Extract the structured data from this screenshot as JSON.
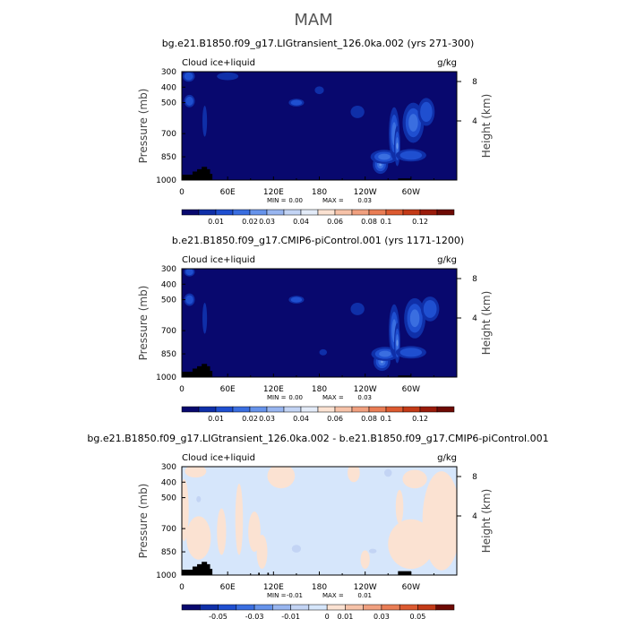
{
  "main_title": "MAM",
  "chart_data": [
    {
      "type": "heatmap",
      "title": "bg.e21.B1850.f09_g17.LIGtransient_126.0ka.002 (yrs 271-300)",
      "left_label": "Cloud ice+liquid",
      "units": "g/kg",
      "ylabel": "Pressure (mb)",
      "y2label": "Height (km)",
      "x_ticks": [
        "0",
        "60E",
        "120E",
        "180",
        "120W",
        "60W"
      ],
      "x_tick_lons": [
        0,
        60,
        120,
        180,
        240,
        300
      ],
      "xlim": [
        0,
        360
      ],
      "y_ticks": [
        "300",
        "400",
        "500",
        "700",
        "850",
        "1000"
      ],
      "y_tick_values": [
        300,
        400,
        500,
        700,
        850,
        1000
      ],
      "ylim": [
        300,
        1000
      ],
      "y2_ticks": [
        "8",
        "4"
      ],
      "y2_tick_values": [
        8,
        4
      ],
      "min_label": "MIN =",
      "min_value": "0.00",
      "max_label": "MAX =",
      "max_value": "0.03",
      "colorbar_labels": [
        "0.01",
        "0.02",
        "0.03",
        "0.04",
        "0.06",
        "0.08",
        "0.1",
        "0.12"
      ],
      "colorbar_colors": [
        "#08086e",
        "#0f2fa8",
        "#1f4fd0",
        "#3a6ee0",
        "#6693ea",
        "#98b5ef",
        "#c3d4f4",
        "#e3ebf8",
        "#fbe2d2",
        "#f6c2a8",
        "#f0a07f",
        "#e97d55",
        "#dc5a30",
        "#c33a17",
        "#9a1b0a",
        "#6e0a04"
      ],
      "background_color": "#08086e",
      "features": [
        {
          "lon": 260,
          "p": 900,
          "rx": 10,
          "rp": 60,
          "level": 4
        },
        {
          "lon": 265,
          "p": 850,
          "rx": 18,
          "rp": 45,
          "level": 3
        },
        {
          "lon": 278,
          "p": 700,
          "rx": 7,
          "rp": 170,
          "level": 3
        },
        {
          "lon": 282,
          "p": 780,
          "rx": 4,
          "rp": 130,
          "level": 4
        },
        {
          "lon": 303,
          "p": 630,
          "rx": 14,
          "rp": 130,
          "level": 3
        },
        {
          "lon": 320,
          "p": 560,
          "rx": 11,
          "rp": 90,
          "level": 2
        },
        {
          "lon": 300,
          "p": 840,
          "rx": 20,
          "rp": 40,
          "level": 2
        },
        {
          "lon": 150,
          "p": 500,
          "rx": 10,
          "rp": 25,
          "level": 2
        },
        {
          "lon": 10,
          "p": 490,
          "rx": 7,
          "rp": 40,
          "level": 2
        },
        {
          "lon": 9,
          "p": 330,
          "rx": 8,
          "rp": 35,
          "level": 2
        },
        {
          "lon": 30,
          "p": 620,
          "rx": 3,
          "rp": 100,
          "level": 1
        },
        {
          "lon": 60,
          "p": 330,
          "rx": 14,
          "rp": 25,
          "level": 1
        },
        {
          "lon": 230,
          "p": 560,
          "rx": 9,
          "rp": 40,
          "level": 1
        },
        {
          "lon": 180,
          "p": 420,
          "rx": 6,
          "rp": 25,
          "level": 1
        }
      ],
      "topography": [
        [
          0,
          1000
        ],
        [
          0,
          965
        ],
        [
          14,
          965
        ],
        [
          14,
          945
        ],
        [
          20,
          945
        ],
        [
          20,
          930
        ],
        [
          26,
          930
        ],
        [
          26,
          915
        ],
        [
          33,
          915
        ],
        [
          33,
          930
        ],
        [
          37,
          930
        ],
        [
          37,
          960
        ],
        [
          40,
          960
        ],
        [
          40,
          1000
        ]
      ],
      "topography_extra": [
        [
          283,
          990,
          300,
          1000
        ]
      ]
    },
    {
      "type": "heatmap",
      "title": "b.e21.B1850.f09_g17.CMIP6-piControl.001 (yrs 1171-1200)",
      "left_label": "Cloud ice+liquid",
      "units": "g/kg",
      "ylabel": "Pressure (mb)",
      "y2label": "Height (km)",
      "x_ticks": [
        "0",
        "60E",
        "120E",
        "180",
        "120W",
        "60W"
      ],
      "x_tick_lons": [
        0,
        60,
        120,
        180,
        240,
        300
      ],
      "xlim": [
        0,
        360
      ],
      "y_ticks": [
        "300",
        "400",
        "500",
        "700",
        "850",
        "1000"
      ],
      "y_tick_values": [
        300,
        400,
        500,
        700,
        850,
        1000
      ],
      "ylim": [
        300,
        1000
      ],
      "y2_ticks": [
        "8",
        "4"
      ],
      "y2_tick_values": [
        8,
        4
      ],
      "min_label": "MIN =",
      "min_value": "0.00",
      "max_label": "MAX =",
      "max_value": "0.03",
      "colorbar_labels": [
        "0.01",
        "0.02",
        "0.03",
        "0.04",
        "0.06",
        "0.08",
        "0.1",
        "0.12"
      ],
      "colorbar_colors": [
        "#08086e",
        "#0f2fa8",
        "#1f4fd0",
        "#3a6ee0",
        "#6693ea",
        "#98b5ef",
        "#c3d4f4",
        "#e3ebf8",
        "#fbe2d2",
        "#f6c2a8",
        "#f0a07f",
        "#e97d55",
        "#dc5a30",
        "#c33a17",
        "#9a1b0a",
        "#6e0a04"
      ],
      "background_color": "#08086e",
      "features": [
        {
          "lon": 262,
          "p": 900,
          "rx": 11,
          "rp": 60,
          "level": 4
        },
        {
          "lon": 266,
          "p": 850,
          "rx": 18,
          "rp": 45,
          "level": 3
        },
        {
          "lon": 278,
          "p": 700,
          "rx": 7,
          "rp": 170,
          "level": 3
        },
        {
          "lon": 282,
          "p": 780,
          "rx": 4,
          "rp": 130,
          "level": 4
        },
        {
          "lon": 305,
          "p": 620,
          "rx": 14,
          "rp": 130,
          "level": 3
        },
        {
          "lon": 325,
          "p": 560,
          "rx": 12,
          "rp": 80,
          "level": 2
        },
        {
          "lon": 300,
          "p": 840,
          "rx": 20,
          "rp": 40,
          "level": 2
        },
        {
          "lon": 150,
          "p": 500,
          "rx": 10,
          "rp": 25,
          "level": 2
        },
        {
          "lon": 10,
          "p": 500,
          "rx": 7,
          "rp": 40,
          "level": 2
        },
        {
          "lon": 10,
          "p": 320,
          "rx": 7,
          "rp": 30,
          "level": 2
        },
        {
          "lon": 30,
          "p": 620,
          "rx": 3,
          "rp": 100,
          "level": 1
        },
        {
          "lon": 230,
          "p": 560,
          "rx": 9,
          "rp": 40,
          "level": 1
        },
        {
          "lon": 185,
          "p": 840,
          "rx": 5,
          "rp": 20,
          "level": 1
        }
      ],
      "topography": [
        [
          0,
          1000
        ],
        [
          0,
          965
        ],
        [
          14,
          965
        ],
        [
          14,
          945
        ],
        [
          20,
          945
        ],
        [
          20,
          930
        ],
        [
          26,
          930
        ],
        [
          26,
          915
        ],
        [
          33,
          915
        ],
        [
          33,
          930
        ],
        [
          37,
          930
        ],
        [
          37,
          960
        ],
        [
          40,
          960
        ],
        [
          40,
          1000
        ]
      ],
      "topography_extra": [
        [
          283,
          990,
          300,
          1000
        ]
      ]
    },
    {
      "type": "heatmap",
      "title": "bg.e21.B1850.f09_g17.LIGtransient_126.0ka.002 - b.e21.B1850.f09_g17.CMIP6-piControl.001",
      "left_label": "Cloud ice+liquid",
      "units": "g/kg",
      "ylabel": "Pressure (mb)",
      "y2label": "Height (km)",
      "x_ticks": [
        "0",
        "60E",
        "120E",
        "180",
        "120W",
        "60W"
      ],
      "x_tick_lons": [
        0,
        60,
        120,
        180,
        240,
        300
      ],
      "xlim": [
        0,
        360
      ],
      "y_ticks": [
        "300",
        "400",
        "500",
        "700",
        "850",
        "1000"
      ],
      "y_tick_values": [
        300,
        400,
        500,
        700,
        850,
        1000
      ],
      "ylim": [
        300,
        1000
      ],
      "y2_ticks": [
        "8",
        "4"
      ],
      "y2_tick_values": [
        8,
        4
      ],
      "min_label": "MIN =",
      "min_value": "-0.01",
      "max_label": "MAX =",
      "max_value": "0.01",
      "colorbar_labels": [
        "-0.05",
        "-0.03",
        "-0.01",
        "0",
        "0.01",
        "0.03",
        "0.05"
      ],
      "colorbar_colors": [
        "#08086e",
        "#0f2fa8",
        "#1f4fd0",
        "#3a6ee0",
        "#6693ea",
        "#98b5ef",
        "#c3d4f4",
        "#d6e6fb",
        "#fbe2d2",
        "#f6c2a8",
        "#f0a07f",
        "#e97d55",
        "#dc5a30",
        "#c33a17",
        "#6e0a04"
      ],
      "background_color": "#d6e6fb",
      "diff_features": [
        {
          "lon": 3,
          "p": 580,
          "rx": 6,
          "rp": 200,
          "color": "#fbe2d2"
        },
        {
          "lon": 22,
          "p": 760,
          "rx": 16,
          "rp": 140,
          "color": "#fbe2d2"
        },
        {
          "lon": 52,
          "p": 720,
          "rx": 6,
          "rp": 150,
          "color": "#fbe2d2"
        },
        {
          "lon": 75,
          "p": 640,
          "rx": 5,
          "rp": 230,
          "color": "#fbe2d2"
        },
        {
          "lon": 95,
          "p": 720,
          "rx": 8,
          "rp": 130,
          "color": "#fbe2d2"
        },
        {
          "lon": 105,
          "p": 850,
          "rx": 7,
          "rp": 110,
          "color": "#fbe2d2"
        },
        {
          "lon": 18,
          "p": 330,
          "rx": 14,
          "rp": 40,
          "color": "#fbe2d2"
        },
        {
          "lon": 130,
          "p": 360,
          "rx": 18,
          "rp": 80,
          "color": "#fbe2d2"
        },
        {
          "lon": 225,
          "p": 340,
          "rx": 8,
          "rp": 60,
          "color": "#fbe2d2"
        },
        {
          "lon": 240,
          "p": 900,
          "rx": 6,
          "rp": 60,
          "color": "#fbe2d2"
        },
        {
          "lon": 300,
          "p": 800,
          "rx": 30,
          "rp": 160,
          "color": "#fbe2d2"
        },
        {
          "lon": 340,
          "p": 650,
          "rx": 25,
          "rp": 320,
          "color": "#fbe2d2"
        },
        {
          "lon": 305,
          "p": 380,
          "rx": 16,
          "rp": 60,
          "color": "#fbe2d2"
        },
        {
          "lon": 285,
          "p": 560,
          "rx": 5,
          "rp": 110,
          "color": "#fbe2d2"
        },
        {
          "lon": 150,
          "p": 830,
          "rx": 6,
          "rp": 25,
          "color": "#c3d4f4"
        },
        {
          "lon": 250,
          "p": 845,
          "rx": 5,
          "rp": 15,
          "color": "#c3d4f4"
        },
        {
          "lon": 22,
          "p": 510,
          "rx": 3,
          "rp": 20,
          "color": "#c3d4f4"
        },
        {
          "lon": 270,
          "p": 340,
          "rx": 5,
          "rp": 25,
          "color": "#c3d4f4"
        }
      ],
      "topography": [
        [
          0,
          1000
        ],
        [
          0,
          965
        ],
        [
          14,
          965
        ],
        [
          14,
          945
        ],
        [
          20,
          945
        ],
        [
          20,
          930
        ],
        [
          26,
          930
        ],
        [
          26,
          915
        ],
        [
          33,
          915
        ],
        [
          33,
          930
        ],
        [
          37,
          930
        ],
        [
          37,
          960
        ],
        [
          40,
          960
        ],
        [
          40,
          1000
        ]
      ],
      "topography_extra": [
        [
          283,
          975,
          300,
          1000
        ],
        [
          100,
          985,
          102,
          1000
        ],
        [
          112,
          985,
          114,
          1000
        ]
      ]
    }
  ]
}
